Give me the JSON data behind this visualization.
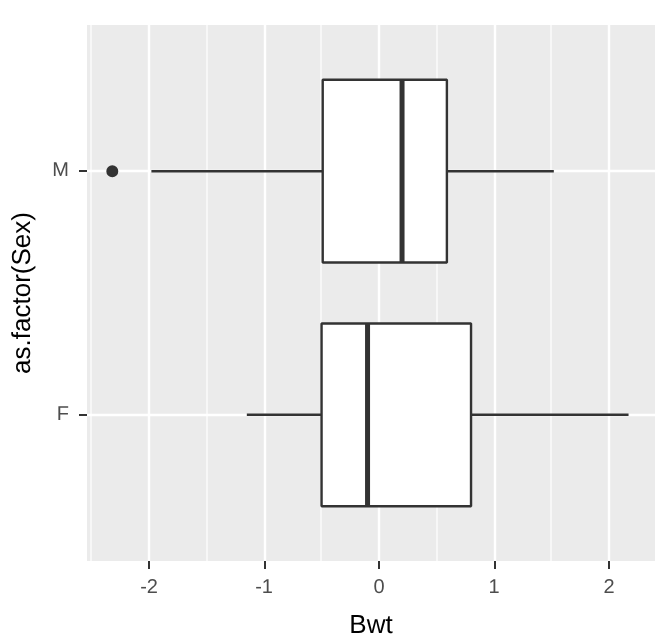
{
  "chart_data": {
    "type": "box",
    "orientation": "horizontal",
    "categories": [
      "M",
      "F"
    ],
    "xlabel": "Bwt",
    "ylabel": "as.factor(Sex)",
    "boxes": [
      {
        "low": -1.98,
        "q1": -0.49,
        "median": 0.2,
        "q3": 0.59,
        "high": 1.52,
        "outliers": [
          -2.32
        ]
      },
      {
        "low": -1.15,
        "q1": -0.5,
        "median": -0.1,
        "q3": 0.8,
        "high": 2.17
      }
    ],
    "xlim": [
      -2.54,
      2.4
    ],
    "xticks": [
      -2,
      -1,
      0,
      1,
      2
    ],
    "grid": true
  }
}
